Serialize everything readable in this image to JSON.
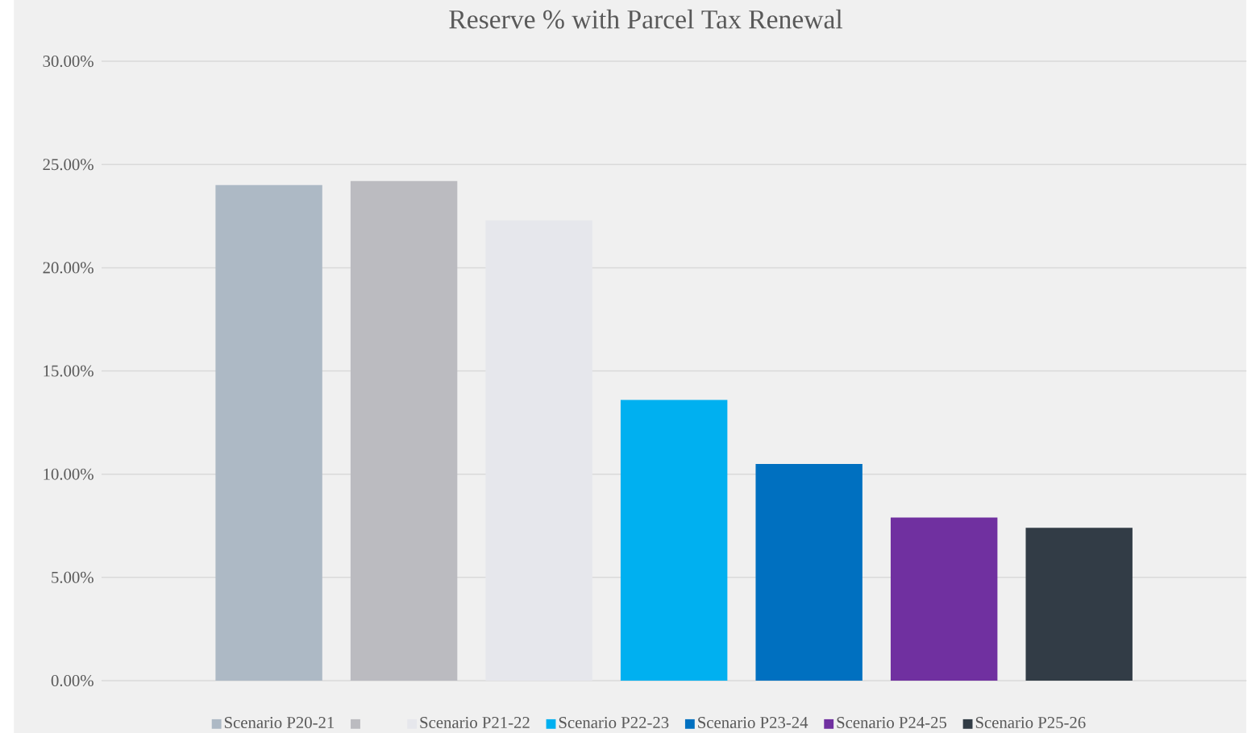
{
  "chart_data": {
    "type": "bar",
    "title": "Reserve % with Parcel Tax Renewal",
    "categories": [
      null
    ],
    "series": [
      {
        "name": "Scenario P20-21",
        "color": "#adb9c5",
        "values": [
          24.0
        ]
      },
      {
        "color": "#bbbbc0",
        "values": [
          24.2
        ]
      },
      {
        "name": "Scenario P21-22",
        "color": "#e6e7ec",
        "values": [
          22.3
        ]
      },
      {
        "name": "Scenario P22-23",
        "color": "#00b0f0",
        "values": [
          13.6
        ]
      },
      {
        "name": "Scenario P23-24",
        "color": "#0070c0",
        "values": [
          10.5
        ]
      },
      {
        "name": "Scenario P24-25",
        "color": "#7030a0",
        "values": [
          7.9
        ]
      },
      {
        "name": "Scenario P25-26",
        "color": "#323c46",
        "values": [
          7.4
        ]
      }
    ],
    "ylim": [
      0,
      30
    ],
    "yticks": [
      {
        "value": 0,
        "label": "0.00%"
      },
      {
        "value": 5,
        "label": "5.00%"
      },
      {
        "value": 10,
        "label": "10.00%"
      },
      {
        "value": 15,
        "label": "15.00%"
      },
      {
        "value": 20,
        "label": "20.00%"
      },
      {
        "value": 25,
        "label": "25.00%"
      },
      {
        "value": 30,
        "label": "30.00%"
      }
    ],
    "grid": "y",
    "legend": "bottom"
  }
}
